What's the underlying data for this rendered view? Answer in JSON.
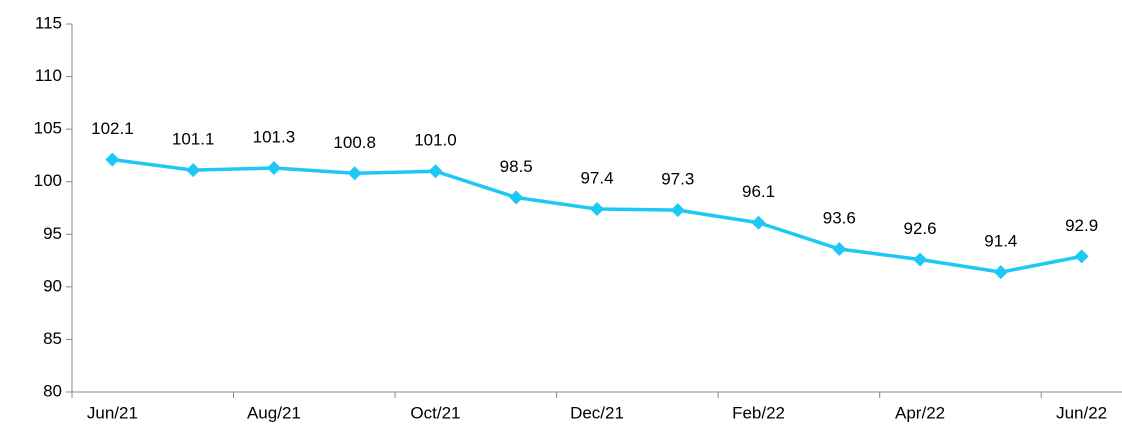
{
  "chart_data": {
    "type": "line",
    "categories": [
      "Jun/21",
      null,
      "Aug/21",
      null,
      "Oct/21",
      null,
      "Dec/21",
      null,
      "Feb/22",
      null,
      "Apr/22",
      null,
      "Jun/22"
    ],
    "series": [
      {
        "color": "#1ec8f5",
        "values": [
          102.1,
          101.1,
          101.3,
          100.8,
          101.0,
          98.5,
          97.4,
          97.3,
          96.1,
          93.6,
          92.6,
          91.4,
          92.9
        ],
        "value_labels": [
          "102.1",
          "101.1",
          "101.3",
          "100.8",
          "101.0",
          "98.5",
          "97.4",
          "97.3",
          "96.1",
          "93.6",
          "92.6",
          "91.4",
          "92.9"
        ]
      }
    ],
    "ylim": [
      80,
      115
    ],
    "yticks": [
      80,
      85,
      90,
      95,
      100,
      105,
      110,
      115
    ],
    "grid": false
  }
}
